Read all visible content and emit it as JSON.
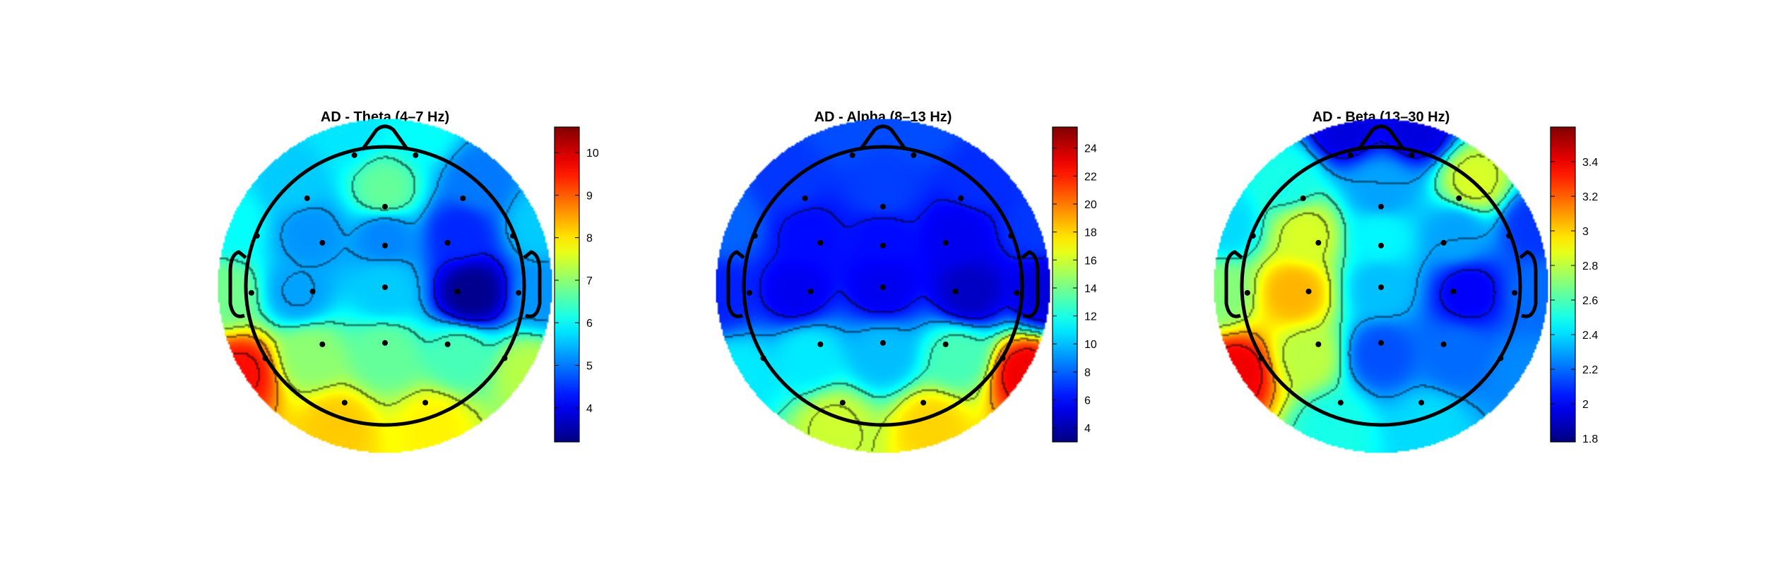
{
  "chart_data": [
    {
      "type": "heatmap",
      "title": "AD - Theta (4–7 Hz)",
      "colormap": "jet",
      "clim": [
        3.2,
        10.6
      ],
      "colorbar_ticks": [
        "10",
        "9",
        "8",
        "7",
        "6",
        "5",
        "4"
      ],
      "colorbar_tick_values": [
        10,
        9,
        8,
        7,
        6,
        5,
        4
      ],
      "electrodes": [
        {
          "x": -0.22,
          "y": 0.94,
          "v": 5.8
        },
        {
          "x": 0.22,
          "y": 0.94,
          "v": 6.0
        },
        {
          "x": -0.56,
          "y": 0.63,
          "v": 5.6
        },
        {
          "x": 0.0,
          "y": 0.57,
          "v": 6.7
        },
        {
          "x": 0.56,
          "y": 0.63,
          "v": 5.0
        },
        {
          "x": -0.92,
          "y": 0.36,
          "v": 6.0
        },
        {
          "x": -0.45,
          "y": 0.31,
          "v": 5.2
        },
        {
          "x": 0.0,
          "y": 0.29,
          "v": 5.1
        },
        {
          "x": 0.45,
          "y": 0.31,
          "v": 4.4
        },
        {
          "x": 0.92,
          "y": 0.36,
          "v": 5.6
        },
        {
          "x": -0.96,
          "y": -0.05,
          "v": 6.8
        },
        {
          "x": -0.52,
          "y": -0.04,
          "v": 5.3
        },
        {
          "x": 0.0,
          "y": -0.01,
          "v": 5.6
        },
        {
          "x": 0.52,
          "y": -0.04,
          "v": 3.3
        },
        {
          "x": 0.96,
          "y": -0.05,
          "v": 5.2
        },
        {
          "x": -0.86,
          "y": -0.52,
          "v": 9.6
        },
        {
          "x": -0.45,
          "y": -0.42,
          "v": 7.0
        },
        {
          "x": 0.0,
          "y": -0.41,
          "v": 6.7
        },
        {
          "x": 0.45,
          "y": -0.42,
          "v": 6.5
        },
        {
          "x": 0.86,
          "y": -0.52,
          "v": 7.3
        },
        {
          "x": -0.29,
          "y": -0.84,
          "v": 8.2
        },
        {
          "x": 0.29,
          "y": -0.84,
          "v": 7.9
        }
      ]
    },
    {
      "type": "heatmap",
      "title": "AD - Alpha (8–13 Hz)",
      "colormap": "jet",
      "clim": [
        3.0,
        25.5
      ],
      "colorbar_ticks": [
        "24",
        "22",
        "20",
        "18",
        "16",
        "14",
        "12",
        "10",
        "8",
        "6",
        "4"
      ],
      "colorbar_tick_values": [
        24,
        22,
        20,
        18,
        16,
        14,
        12,
        10,
        8,
        6,
        4
      ],
      "electrodes": [
        {
          "x": -0.22,
          "y": 0.94,
          "v": 7.5
        },
        {
          "x": 0.22,
          "y": 0.94,
          "v": 7.5
        },
        {
          "x": -0.56,
          "y": 0.63,
          "v": 7.0
        },
        {
          "x": 0.0,
          "y": 0.57,
          "v": 7.2
        },
        {
          "x": 0.56,
          "y": 0.63,
          "v": 6.8
        },
        {
          "x": -0.92,
          "y": 0.36,
          "v": 8.0
        },
        {
          "x": -0.45,
          "y": 0.31,
          "v": 6.0
        },
        {
          "x": 0.0,
          "y": 0.29,
          "v": 6.0
        },
        {
          "x": 0.45,
          "y": 0.31,
          "v": 5.5
        },
        {
          "x": 0.92,
          "y": 0.36,
          "v": 7.0
        },
        {
          "x": -0.96,
          "y": -0.05,
          "v": 6.5
        },
        {
          "x": -0.52,
          "y": -0.04,
          "v": 5.5
        },
        {
          "x": 0.0,
          "y": -0.01,
          "v": 5.5
        },
        {
          "x": 0.52,
          "y": -0.04,
          "v": 4.5
        },
        {
          "x": 0.96,
          "y": -0.05,
          "v": 5.0
        },
        {
          "x": -0.86,
          "y": -0.52,
          "v": 11.0
        },
        {
          "x": -0.45,
          "y": -0.42,
          "v": 11.0
        },
        {
          "x": 0.0,
          "y": -0.41,
          "v": 10.0
        },
        {
          "x": 0.45,
          "y": -0.42,
          "v": 13.0
        },
        {
          "x": 0.86,
          "y": -0.52,
          "v": 23.0
        },
        {
          "x": -0.29,
          "y": -0.84,
          "v": 16.0
        },
        {
          "x": 0.29,
          "y": -0.84,
          "v": 18.0
        }
      ]
    },
    {
      "type": "heatmap",
      "title": "AD - Beta (13–30 Hz)",
      "colormap": "jet",
      "clim": [
        1.78,
        3.6
      ],
      "colorbar_ticks": [
        "3.4",
        "3.2",
        "3",
        "2.8",
        "2.6",
        "2.4",
        "2.2",
        "2",
        "1.8"
      ],
      "colorbar_tick_values": [
        3.4,
        3.2,
        3.0,
        2.8,
        2.6,
        2.4,
        2.2,
        2.0,
        1.8
      ],
      "electrodes": [
        {
          "x": -0.22,
          "y": 0.94,
          "v": 1.95
        },
        {
          "x": 0.22,
          "y": 0.94,
          "v": 1.95
        },
        {
          "x": -0.56,
          "y": 0.63,
          "v": 2.5
        },
        {
          "x": 0.0,
          "y": 0.57,
          "v": 2.3
        },
        {
          "x": 0.56,
          "y": 0.63,
          "v": 2.85
        },
        {
          "x": -0.92,
          "y": 0.36,
          "v": 2.4
        },
        {
          "x": -0.45,
          "y": 0.31,
          "v": 2.85
        },
        {
          "x": 0.0,
          "y": 0.29,
          "v": 2.45
        },
        {
          "x": 0.45,
          "y": 0.31,
          "v": 2.3
        },
        {
          "x": 0.92,
          "y": 0.36,
          "v": 2.1
        },
        {
          "x": -0.96,
          "y": -0.05,
          "v": 2.7
        },
        {
          "x": -0.52,
          "y": -0.04,
          "v": 3.05
        },
        {
          "x": 0.0,
          "y": -0.01,
          "v": 2.35
        },
        {
          "x": 0.52,
          "y": -0.04,
          "v": 2.0
        },
        {
          "x": 0.96,
          "y": -0.05,
          "v": 2.2
        },
        {
          "x": -0.86,
          "y": -0.52,
          "v": 3.4
        },
        {
          "x": -0.45,
          "y": -0.42,
          "v": 2.8
        },
        {
          "x": 0.0,
          "y": -0.41,
          "v": 2.15
        },
        {
          "x": 0.45,
          "y": -0.42,
          "v": 2.2
        },
        {
          "x": 0.86,
          "y": -0.52,
          "v": 2.25
        },
        {
          "x": -0.29,
          "y": -0.84,
          "v": 2.5
        },
        {
          "x": 0.29,
          "y": -0.84,
          "v": 2.4
        }
      ]
    }
  ]
}
